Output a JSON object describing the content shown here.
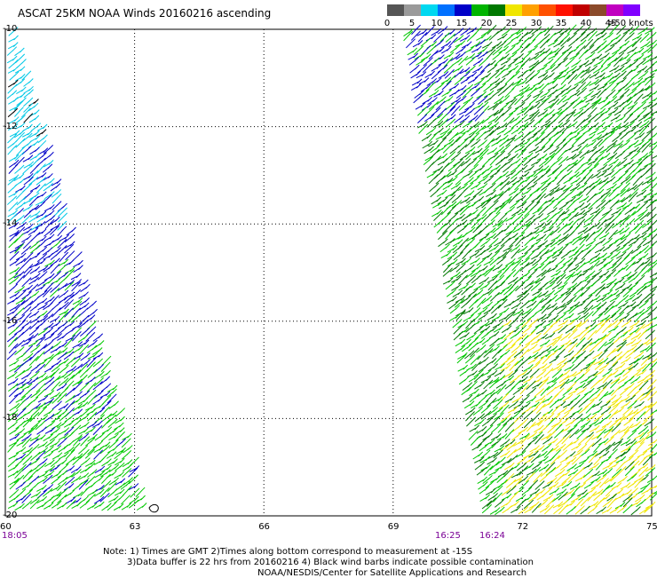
{
  "header": {
    "title": "ASCAT 25KM NOAA Winds 20160216 ascending"
  },
  "legend": {
    "colors": [
      "#555555",
      "#9a9a9a",
      "#00d8f0",
      "#0070ff",
      "#0000c8",
      "#00b400",
      "#007800",
      "#f0e600",
      "#ffa000",
      "#ff5000",
      "#ff1000",
      "#c00000",
      "#8b4a2a",
      "#c000c0",
      "#8000ff"
    ],
    "labels": [
      "0",
      "5",
      "10",
      "15",
      "20",
      "25",
      "30",
      "35",
      "40",
      "45",
      ">50 knots"
    ]
  },
  "axes": {
    "y_labels": [
      "-10",
      "-12",
      "-14",
      "-16",
      "-18",
      "-20"
    ],
    "x_labels": [
      "60",
      "63",
      "66",
      "69",
      "72",
      "75"
    ]
  },
  "times": {
    "left": "18:05",
    "mid_a": "16:25",
    "mid_b": "16:24"
  },
  "notes": {
    "line1": "Note: 1) Times are GMT 2)Times along bottom correspond to measurement at -15S",
    "line2": "3)Data buffer is 22 hrs from 20160216 4) Black wind barbs indicate possible contamination",
    "line3": "NOAA/NESDIS/Center for Satellite Applications and Research"
  },
  "colors": {
    "frame": "#000000",
    "grid": "#000000",
    "time_text": "#7a0096",
    "barb_cyan": "#00c8e6",
    "barb_blue": "#0000c8",
    "barb_green": "#00c800",
    "barb_dkgreen": "#007800",
    "barb_yellow": "#f0e600",
    "barb_black": "#000000"
  }
}
